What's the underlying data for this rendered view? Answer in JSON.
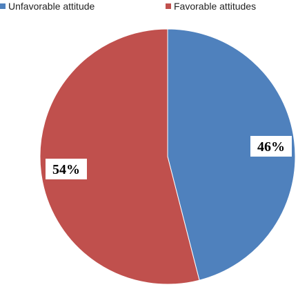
{
  "chart_data": {
    "type": "pie",
    "categories": [
      "Unfavorable attitude",
      "Favorable  attitudes"
    ],
    "values": [
      46,
      54
    ],
    "labels": [
      "46%",
      "54%"
    ],
    "colors": [
      "#4F81BD",
      "#C0504D"
    ],
    "legend_position": "top"
  }
}
